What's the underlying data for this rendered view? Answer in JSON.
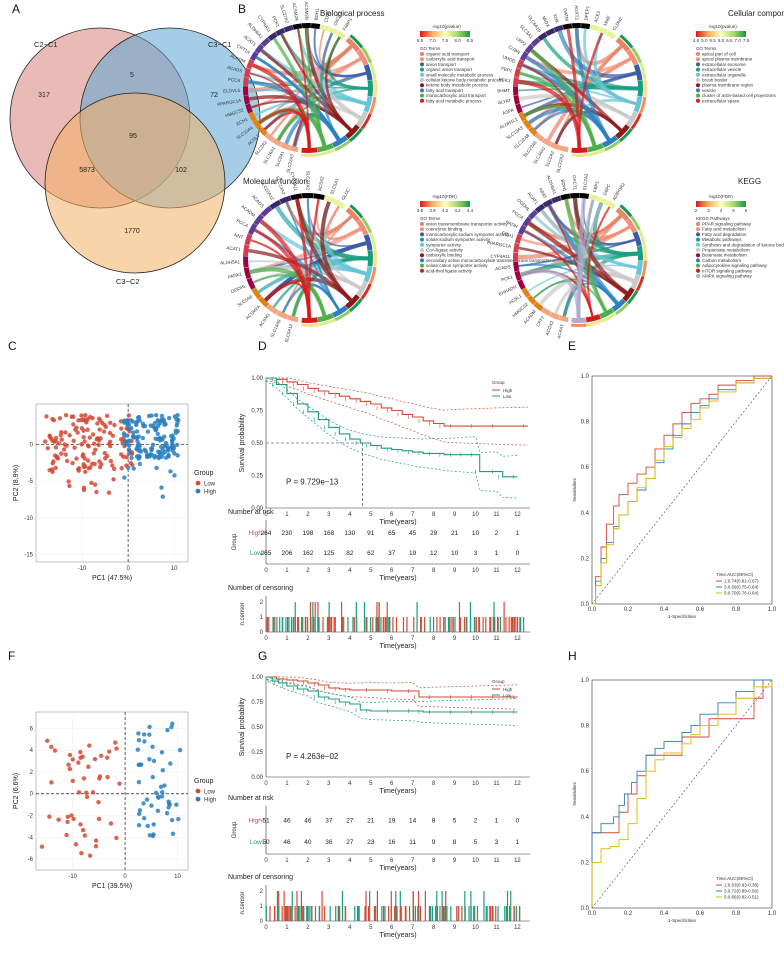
{
  "panel_labels": [
    "A",
    "B",
    "C",
    "D",
    "E",
    "F",
    "G",
    "H"
  ],
  "colors": {
    "red": "#d34a35",
    "blue": "#2a80c0",
    "teal": "#1b9e80",
    "orange": "#e39b2b",
    "gold": "#e6b400",
    "venn_a": "#d9837a",
    "venn_b": "#5aa6d6",
    "venn_c": "#f2b065"
  },
  "chart_data": [
    {
      "type": "venn",
      "panel": "A",
      "sets": [
        "C2−C1",
        "C3−C1",
        "C3−C2"
      ],
      "regions": {
        "a_only": 317,
        "b_only": 72,
        "c_only": 1770,
        "ab": 5,
        "ac": 5873,
        "bc": 102,
        "abc": 95
      }
    },
    {
      "type": "chord",
      "panel": "B",
      "plots": [
        {
          "title": "Biological process",
          "scale_label": "-log10(pvalue)",
          "scale_ticks": [
            "6.5",
            "7.0",
            "7.5",
            "8.0",
            "8.5"
          ],
          "legend_header": "GO Terms",
          "terms": [
            "organic acid transport",
            "carboxylic acid transport",
            "anion transport",
            "organic anion transport",
            "small molecule metabolic process",
            "cellular ketone body metabolic process",
            "ketone body metabolic process",
            "fatty acid transport",
            "monocarboxylic acid transport",
            "fatty acid metabolic process"
          ],
          "genes": [
            "SLC22A5",
            "SLC5A1",
            "SLC16A1",
            "SLC2A2",
            "ACSL1",
            "SLC22A4",
            "ECH1",
            "HMGCS2",
            "PPARGC1A",
            "ELOVL5",
            "PCCA",
            "ACADS",
            "ACADM",
            "CPT1A",
            "ACAT1",
            "ALDH6A1",
            "CYP4A11",
            "PCK1",
            "SLC27A2",
            "ACSM2A",
            "ACSM2B",
            "BDH1",
            "CD36",
            "OXCT1",
            "FABP1"
          ]
        },
        {
          "title": "Cellular component",
          "scale_label": "-log10(pvalue)",
          "scale_ticks": [
            "4.5",
            "5.0",
            "5.5",
            "6.0",
            "6.5",
            "7.0",
            "7.5"
          ],
          "legend_header": "GO Terms",
          "terms": [
            "apical part of cell",
            "apical plasma membrane",
            "extracellular exosome",
            "extracellular vesicle",
            "extracellular organelle",
            "brush border",
            "plasma membrane region",
            "vesicle",
            "cluster of actin-based cell projections",
            "extracellular space"
          ],
          "genes": [
            "SLC22A2",
            "SLC5A2",
            "SLC34A1",
            "SLC22A6",
            "SLC22A8",
            "SLC13A3",
            "ALDH1L1",
            "ASPA",
            "GLYAT",
            "BHMT",
            "PCK1",
            "FBP1",
            "UMOD",
            "CUBN",
            "LRP2",
            "SLC3A1",
            "SLC6A19",
            "MIOX",
            "KHK",
            "GATM",
            "AGXT2",
            "DPEP1",
            "ACE2",
            "MME",
            "CLDN2"
          ]
        },
        {
          "title": "Molecular function",
          "scale_label": "-log10(FDR)",
          "scale_ticks": [
            "3.6",
            "3.8",
            "4.0",
            "4.2",
            "4.4"
          ],
          "legend_header": "GO Terms",
          "terms": [
            "anion transmembrane transporter activity",
            "coenzyme binding",
            "monocarboxylic:sodium symporter activity",
            "solute:sodium symporter activity",
            "symporter activity",
            "CoA-ligase activity",
            "carboxylic binding",
            "secondary active monocarboxylate transmembrane transporter activity",
            "solute:cation symporter activity",
            "acid-thiol ligase activity"
          ],
          "genes": [
            "SLC5A12",
            "SLC16A9",
            "ACSM1",
            "ACSM2A",
            "SLC5A8",
            "OGDHL",
            "PANK1",
            "ALDH5A1",
            "ACAT1",
            "NNT",
            "PCCA",
            "ACADM",
            "ACADS",
            "SLC22A12",
            "SLC13A2",
            "CYP4A11",
            "SLC27A2",
            "ACSS2",
            "SLC5A1",
            "GLDC"
          ]
        },
        {
          "title": "KEGG",
          "scale_label": "-log10(FDR)",
          "scale_ticks": [
            "2",
            "3",
            "4",
            "5",
            "6"
          ],
          "legend_header": "KEGG Pathways",
          "terms": [
            "PPAR signaling pathway",
            "Fatty acid metabolism",
            "Fatty acid degradation",
            "Metabolic pathways",
            "Synthesis and degradation of ketone bodies",
            "Propanoate metabolism",
            "Butanoate metabolism",
            "Carbon metabolism",
            "Adipocytokine signaling pathway",
            "mTOR signaling pathway",
            "AMPK signaling pathway"
          ],
          "genes": [
            "ACAA1",
            "ACOX2",
            "CPT2",
            "ACADM",
            "HMGCS2",
            "ACSL1",
            "EHHADH",
            "PCK1",
            "ACADS",
            "CYP4A11",
            "PPARGC1A",
            "ECH1",
            "HADH",
            "PCCA",
            "OGDHL",
            "ACAT1",
            "ABAT",
            "ALDH6A1",
            "BDH1",
            "OXCT1",
            "SLC2A2",
            "FBP1",
            "G6PC",
            "ADIPOR2"
          ]
        }
      ]
    },
    {
      "type": "scatter",
      "panel": "C",
      "xlabel": "PC1 (47.5%)",
      "ylabel": "PC2 (8.9%)",
      "xlim": [
        -20,
        13
      ],
      "ylim": [
        -16,
        5.5
      ],
      "xticks": [
        -10,
        0,
        10
      ],
      "yticks": [
        -15,
        -10,
        -5,
        0
      ],
      "legend_title": "Group",
      "legend": [
        "Low",
        "High"
      ],
      "series": [
        {
          "name": "Low",
          "n": 265
        },
        {
          "name": "High",
          "n": 264
        }
      ]
    },
    {
      "type": "line",
      "panel": "D",
      "subtype": "kaplan-meier",
      "ylabel": "Survival probability",
      "xlabel": "Time(years)",
      "xlim": [
        0,
        12.6
      ],
      "xticks": [
        0,
        1,
        2,
        3,
        4,
        5,
        6,
        7,
        8,
        9,
        10,
        11,
        12
      ],
      "ylim": [
        0,
        1
      ],
      "yticks": [
        "0.00",
        "0.25",
        "0.50",
        "0.75",
        "1.00"
      ],
      "pvalue": "P = 9.729e−13",
      "legend_title": "Group",
      "legend": [
        "High",
        "Low"
      ],
      "median_low": 4.6,
      "series": [
        {
          "name": "High",
          "x": [
            0,
            0.5,
            1,
            1.5,
            2,
            2.5,
            3,
            3.5,
            4,
            4.5,
            5,
            5.5,
            6,
            6.5,
            7,
            7.5,
            8,
            8.5,
            9,
            10,
            11,
            12.5
          ],
          "y": [
            1,
            0.99,
            0.97,
            0.95,
            0.92,
            0.9,
            0.88,
            0.86,
            0.84,
            0.82,
            0.8,
            0.77,
            0.75,
            0.72,
            0.7,
            0.67,
            0.65,
            0.63,
            0.63,
            0.63,
            0.63,
            0.63
          ]
        },
        {
          "name": "Low",
          "x": [
            0,
            0.5,
            1,
            1.5,
            2,
            2.5,
            3,
            3.5,
            4,
            4.5,
            5,
            5.5,
            6,
            6.5,
            7,
            7.5,
            8,
            8.5,
            9,
            9.5,
            10,
            10.2,
            11,
            11.3,
            12
          ],
          "y": [
            1,
            0.95,
            0.88,
            0.8,
            0.74,
            0.68,
            0.62,
            0.57,
            0.53,
            0.5,
            0.48,
            0.46,
            0.45,
            0.44,
            0.43,
            0.42,
            0.42,
            0.41,
            0.41,
            0.41,
            0.41,
            0.28,
            0.28,
            0.24,
            0.24
          ]
        }
      ],
      "risk_title": "Number at risk",
      "risk_ylabel": "Group",
      "risk_table": {
        "High": [
          264,
          230,
          198,
          168,
          130,
          91,
          65,
          45,
          29,
          21,
          10,
          2,
          1
        ],
        "Low": [
          265,
          206,
          162,
          125,
          82,
          62,
          37,
          19,
          12,
          10,
          3,
          1,
          0
        ]
      },
      "censor_title": "Number of censoring",
      "censor_ylabel": "n.censor"
    },
    {
      "type": "line",
      "panel": "E",
      "subtype": "roc",
      "xlabel": "1-Specificities",
      "ylabel": "Sensitivities",
      "xticks": [
        "0.0",
        "0.2",
        "0.4",
        "0.6",
        "0.8",
        "1.0"
      ],
      "yticks": [
        "0.0",
        "0.2",
        "0.4",
        "0.6",
        "0.8",
        "1.0"
      ],
      "legend_title": "Time:AUC(95%CI)",
      "series": [
        {
          "name": "1:0.74(0.81-0.67)",
          "color": "#d34a35",
          "x": [
            0,
            0.02,
            0.05,
            0.08,
            0.12,
            0.15,
            0.2,
            0.25,
            0.3,
            0.35,
            0.4,
            0.45,
            0.5,
            0.55,
            0.6,
            0.65,
            0.7,
            0.8,
            0.9,
            1
          ],
          "y": [
            0,
            0.12,
            0.25,
            0.35,
            0.43,
            0.48,
            0.53,
            0.57,
            0.6,
            0.68,
            0.74,
            0.79,
            0.84,
            0.88,
            0.9,
            0.92,
            0.96,
            0.98,
            1,
            1
          ]
        },
        {
          "name": "3:0.69(0.75-0.64)",
          "color": "#2a80c0",
          "x": [
            0,
            0.02,
            0.05,
            0.08,
            0.12,
            0.15,
            0.2,
            0.25,
            0.3,
            0.35,
            0.4,
            0.45,
            0.5,
            0.55,
            0.6,
            0.65,
            0.7,
            0.8,
            0.9,
            1
          ],
          "y": [
            0,
            0.1,
            0.2,
            0.27,
            0.34,
            0.39,
            0.45,
            0.5,
            0.55,
            0.62,
            0.68,
            0.74,
            0.79,
            0.84,
            0.87,
            0.9,
            0.94,
            0.97,
            0.99,
            1
          ]
        },
        {
          "name": "5:0.70(0.76-0.64)",
          "color": "#e6b400",
          "x": [
            0,
            0.02,
            0.05,
            0.08,
            0.12,
            0.15,
            0.2,
            0.25,
            0.3,
            0.35,
            0.4,
            0.45,
            0.5,
            0.55,
            0.6,
            0.65,
            0.7,
            0.8,
            0.9,
            1
          ],
          "y": [
            0,
            0.08,
            0.18,
            0.26,
            0.33,
            0.39,
            0.45,
            0.51,
            0.55,
            0.63,
            0.69,
            0.73,
            0.77,
            0.81,
            0.86,
            0.89,
            0.93,
            0.97,
            0.99,
            1
          ]
        }
      ]
    },
    {
      "type": "scatter",
      "panel": "F",
      "xlabel": "PC1 (39.5%)",
      "ylabel": "PC2 (6.6%)",
      "xlim": [
        -17,
        12
      ],
      "ylim": [
        -7,
        7.5
      ],
      "xticks": [
        -10,
        0,
        10
      ],
      "yticks": [
        -6,
        -4,
        -2,
        0,
        2,
        4,
        6
      ],
      "legend_title": "Group",
      "legend": [
        "Low",
        "High"
      ],
      "series": [
        {
          "name": "Low",
          "n": 50
        },
        {
          "name": "High",
          "n": 51
        }
      ]
    },
    {
      "type": "line",
      "panel": "G",
      "subtype": "kaplan-meier",
      "ylabel": "Survival probability",
      "xlabel": "Time(years)",
      "xlim": [
        0,
        12.6
      ],
      "xticks": [
        0,
        1,
        2,
        3,
        4,
        5,
        6,
        7,
        8,
        9,
        10,
        11,
        12
      ],
      "ylim": [
        0,
        1
      ],
      "yticks": [
        "0.00",
        "0.25",
        "0.50",
        "0.75",
        "1.00"
      ],
      "pvalue": "P = 4.263e−02",
      "legend_title": "Group",
      "legend": [
        "High",
        "Low"
      ],
      "series": [
        {
          "name": "High",
          "x": [
            0,
            0.5,
            1,
            1.5,
            2,
            2.5,
            3,
            3.5,
            4,
            5,
            6,
            7,
            7.3,
            8,
            9,
            10,
            11,
            12
          ],
          "y": [
            1,
            0.98,
            0.97,
            0.96,
            0.94,
            0.92,
            0.89,
            0.88,
            0.87,
            0.87,
            0.86,
            0.86,
            0.8,
            0.8,
            0.8,
            0.8,
            0.8,
            0.8
          ]
        },
        {
          "name": "Low",
          "x": [
            0,
            0.3,
            0.6,
            1,
            1.5,
            2,
            2.5,
            3,
            3.5,
            4,
            4.5,
            5,
            6,
            7,
            7.5,
            8,
            9,
            10,
            11,
            12
          ],
          "y": [
            1,
            0.96,
            0.94,
            0.91,
            0.88,
            0.86,
            0.8,
            0.78,
            0.75,
            0.73,
            0.67,
            0.66,
            0.66,
            0.66,
            0.65,
            0.65,
            0.65,
            0.65,
            0.65,
            0.65
          ]
        }
      ],
      "risk_title": "Number at risk",
      "risk_ylabel": "Group",
      "risk_table": {
        "High": [
          51,
          46,
          46,
          37,
          27,
          21,
          19,
          14,
          8,
          5,
          2,
          1,
          0
        ],
        "Low": [
          50,
          46,
          40,
          36,
          27,
          23,
          16,
          11,
          9,
          8,
          5,
          3,
          1
        ]
      },
      "censor_title": "Number of censoring",
      "censor_ylabel": "n.censor"
    },
    {
      "type": "line",
      "panel": "H",
      "subtype": "roc",
      "xlabel": "1-Specificities",
      "ylabel": "Sensitivities",
      "xticks": [
        "0.0",
        "0.2",
        "0.4",
        "0.6",
        "0.8",
        "1.0"
      ],
      "yticks": [
        "0.0",
        "0.2",
        "0.4",
        "0.6",
        "0.8",
        "1.0"
      ],
      "legend_title": "Time:AUC(95%CI)",
      "series": [
        {
          "name": "1:0.63(0.93-0.38)",
          "color": "#d34a35",
          "x": [
            0,
            0,
            0.02,
            0.1,
            0.15,
            0.2,
            0.25,
            0.3,
            0.35,
            0.45,
            0.5,
            0.6,
            0.65,
            0.7,
            0.85,
            0.9,
            0.95,
            1
          ],
          "y": [
            0,
            0.33,
            0.33,
            0.33,
            0.42,
            0.5,
            0.58,
            0.67,
            0.67,
            0.67,
            0.75,
            0.75,
            0.83,
            0.83,
            0.83,
            0.92,
            1,
            1
          ]
        },
        {
          "name": "3:0.72(0.89-0.56)",
          "color": "#2a80c0",
          "x": [
            0,
            0,
            0.05,
            0.12,
            0.15,
            0.18,
            0.22,
            0.25,
            0.3,
            0.35,
            0.4,
            0.5,
            0.55,
            0.6,
            0.7,
            0.8,
            0.9,
            1
          ],
          "y": [
            0,
            0.33,
            0.37,
            0.4,
            0.45,
            0.5,
            0.55,
            0.6,
            0.67,
            0.7,
            0.73,
            0.77,
            0.8,
            0.85,
            0.9,
            0.95,
            1,
            1
          ]
        },
        {
          "name": "5:0.66(0.82-0.51)",
          "color": "#e6b400",
          "x": [
            0,
            0,
            0.05,
            0.1,
            0.15,
            0.2,
            0.25,
            0.3,
            0.35,
            0.4,
            0.5,
            0.55,
            0.6,
            0.7,
            0.8,
            0.9,
            1
          ],
          "y": [
            0,
            0.2,
            0.26,
            0.27,
            0.3,
            0.37,
            0.48,
            0.6,
            0.65,
            0.68,
            0.72,
            0.76,
            0.8,
            0.85,
            0.92,
            0.97,
            1
          ]
        }
      ]
    }
  ]
}
